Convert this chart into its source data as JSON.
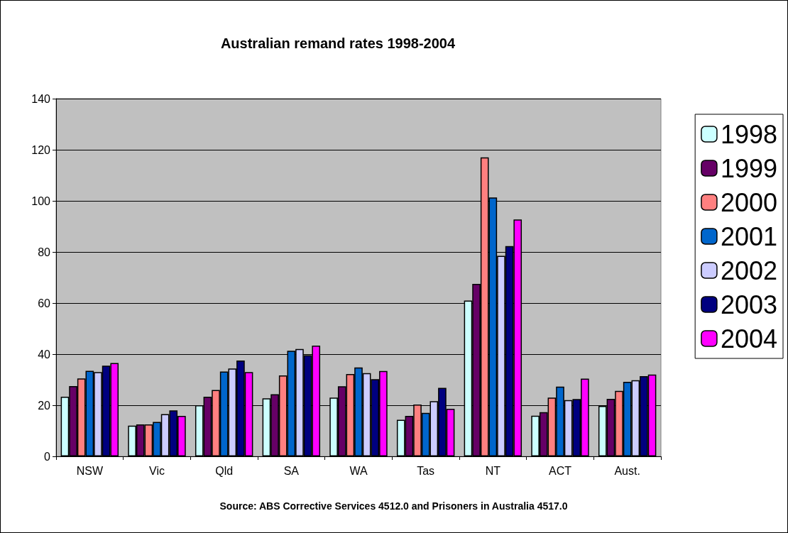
{
  "chart_data": {
    "type": "bar",
    "title": "Australian remand rates 1998-2004",
    "categories": [
      "NSW",
      "Vic",
      "Qld",
      "SA",
      "WA",
      "Tas",
      "NT",
      "ACT",
      "Aust."
    ],
    "series": [
      {
        "name": "1998",
        "color": "#ccffff",
        "values": [
          23.3,
          12,
          20,
          22.7,
          23,
          14.3,
          61,
          15.9,
          19.7
        ]
      },
      {
        "name": "1999",
        "color": "#660066",
        "values": [
          27.5,
          12.5,
          23.3,
          24.3,
          27.4,
          15.8,
          67.5,
          17.3,
          22.5
        ]
      },
      {
        "name": "2000",
        "color": "#ff8080",
        "values": [
          30.5,
          12.5,
          26,
          31.7,
          32.2,
          20.3,
          117,
          23,
          25.6
        ]
      },
      {
        "name": "2001",
        "color": "#0066cc",
        "values": [
          33.5,
          13.5,
          33.2,
          41.3,
          34.8,
          17,
          101.3,
          27.3,
          29.2
        ]
      },
      {
        "name": "2002",
        "color": "#ccccff",
        "values": [
          33,
          16.5,
          34.4,
          42,
          32.6,
          21.6,
          78.5,
          22,
          29.8
        ]
      },
      {
        "name": "2003",
        "color": "#000080",
        "values": [
          35.5,
          18,
          37.5,
          39.6,
          30.2,
          26.8,
          82.3,
          22.4,
          31.4
        ]
      },
      {
        "name": "2004",
        "color": "#ff00ff",
        "values": [
          36.5,
          15.8,
          33,
          43.3,
          33.4,
          18.6,
          92.7,
          30.4,
          32
        ]
      }
    ],
    "ylim": [
      0,
      140
    ],
    "yticks": [
      0,
      20,
      40,
      60,
      80,
      100,
      120,
      140
    ],
    "grid": "y",
    "legend": "right",
    "annotations": [
      "Source: ABS Corrective Services 4512.0 and Prisoners in Australia 4517.0"
    ]
  }
}
